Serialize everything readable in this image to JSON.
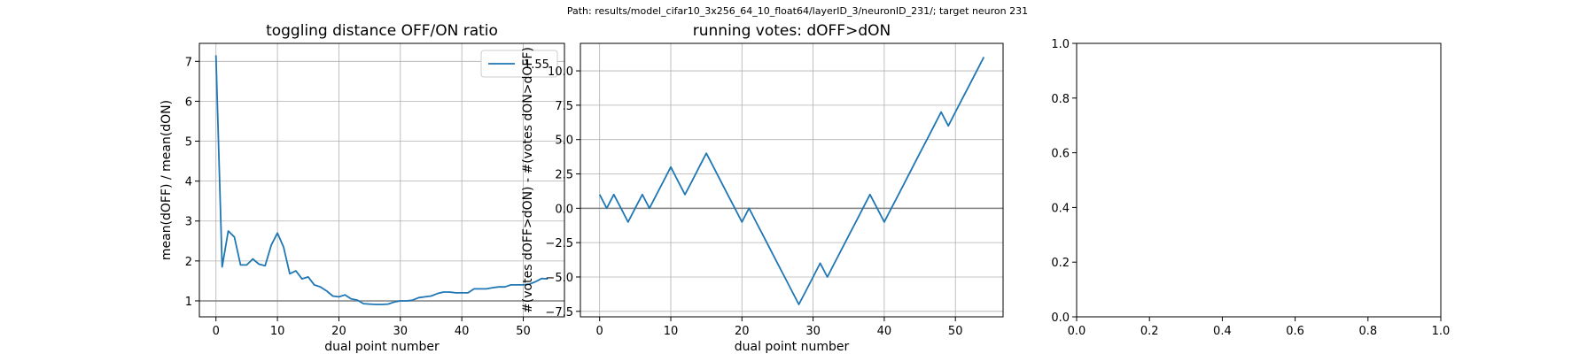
{
  "figure": {
    "suptitle": "Path: results/model_cifar10_3x256_64_10_float64/layerID_3/neuronID_231/; target neuron 231"
  },
  "chart_data": [
    {
      "type": "line",
      "title": "toggling distance OFF/ON ratio",
      "xlabel": "dual point number",
      "ylabel": "mean(dOFF) / mean(dON)",
      "xlim": [
        -2.7,
        56.7
      ],
      "ylim": [
        0.6,
        7.45
      ],
      "xticks": [
        0,
        10,
        20,
        30,
        40,
        50
      ],
      "yticks": [
        1,
        2,
        3,
        4,
        5,
        6,
        7
      ],
      "grid": true,
      "legend": {
        "placement": "upper right",
        "entries": [
          "1.55"
        ]
      },
      "hline": {
        "y": 1,
        "color": "#808080"
      },
      "series": [
        {
          "name": "1.55",
          "color": "#1f77b4",
          "x": [
            0,
            1,
            2,
            3,
            4,
            5,
            6,
            7,
            8,
            9,
            10,
            11,
            12,
            13,
            14,
            15,
            16,
            17,
            18,
            19,
            20,
            21,
            22,
            23,
            24,
            25,
            26,
            27,
            28,
            29,
            30,
            31,
            32,
            33,
            34,
            35,
            36,
            37,
            38,
            39,
            40,
            41,
            42,
            43,
            44,
            45,
            46,
            47,
            48,
            49,
            50,
            51,
            52,
            53,
            54
          ],
          "y": [
            7.15,
            1.85,
            2.75,
            2.6,
            1.9,
            1.9,
            2.05,
            1.92,
            1.88,
            2.4,
            2.7,
            2.35,
            1.68,
            1.75,
            1.55,
            1.6,
            1.4,
            1.35,
            1.25,
            1.12,
            1.1,
            1.15,
            1.05,
            1.02,
            0.93,
            0.92,
            0.91,
            0.91,
            0.92,
            0.97,
            1.0,
            1.0,
            1.02,
            1.08,
            1.1,
            1.12,
            1.18,
            1.22,
            1.22,
            1.2,
            1.2,
            1.2,
            1.3,
            1.3,
            1.3,
            1.33,
            1.35,
            1.35,
            1.4,
            1.4,
            1.4,
            1.42,
            1.48,
            1.56,
            1.55
          ]
        }
      ]
    },
    {
      "type": "line",
      "title": "running votes: dOFF>dON",
      "xlabel": "dual point number",
      "ylabel": "#(votes dOFF>dON) - #(votes dON>dOFF)",
      "xlim": [
        -2.7,
        56.7
      ],
      "ylim": [
        -7.9,
        12.0
      ],
      "xticks": [
        0,
        10,
        20,
        30,
        40,
        50
      ],
      "yticks": [
        -7.5,
        -5.0,
        -2.5,
        0.0,
        2.5,
        5.0,
        7.5,
        10.0
      ],
      "yticklabels": [
        "−7.5",
        "−5.0",
        "−2.5",
        "0.0",
        "2.5",
        "5.0",
        "7.5",
        "10.0"
      ],
      "grid": true,
      "hline": {
        "y": 0,
        "color": "#808080"
      },
      "series": [
        {
          "color": "#1f77b4",
          "x": [
            0,
            1,
            2,
            3,
            4,
            5,
            6,
            7,
            8,
            9,
            10,
            11,
            12,
            13,
            14,
            15,
            16,
            17,
            18,
            19,
            20,
            21,
            22,
            23,
            24,
            25,
            26,
            27,
            28,
            29,
            30,
            31,
            32,
            33,
            34,
            35,
            36,
            37,
            38,
            39,
            40,
            41,
            42,
            43,
            44,
            45,
            46,
            47,
            48,
            49,
            50,
            51,
            52,
            53,
            54
          ],
          "y": [
            1,
            0,
            1,
            0,
            -1,
            0,
            1,
            0,
            1,
            2,
            3,
            2,
            1,
            2,
            3,
            4,
            3,
            2,
            1,
            0,
            -1,
            0,
            -1,
            -2,
            -3,
            -4,
            -5,
            -6,
            -7,
            -6,
            -5,
            -4,
            -5,
            -4,
            -3,
            -2,
            -1,
            0,
            1,
            0,
            -1,
            0,
            1,
            2,
            3,
            4,
            5,
            6,
            7,
            6,
            7,
            8,
            9,
            10,
            11
          ]
        }
      ]
    },
    {
      "type": "line",
      "title": "",
      "xlabel": "",
      "ylabel": "",
      "xlim": [
        0,
        1
      ],
      "ylim": [
        0,
        1
      ],
      "xticks": [
        0.0,
        0.2,
        0.4,
        0.6,
        0.8,
        1.0
      ],
      "yticks": [
        0.0,
        0.2,
        0.4,
        0.6,
        0.8,
        1.0
      ],
      "xticklabels": [
        "0.0",
        "0.2",
        "0.4",
        "0.6",
        "0.8",
        "1.0"
      ],
      "yticklabels": [
        "0.0",
        "0.2",
        "0.4",
        "0.6",
        "0.8",
        "1.0"
      ],
      "grid": false,
      "series": []
    }
  ]
}
